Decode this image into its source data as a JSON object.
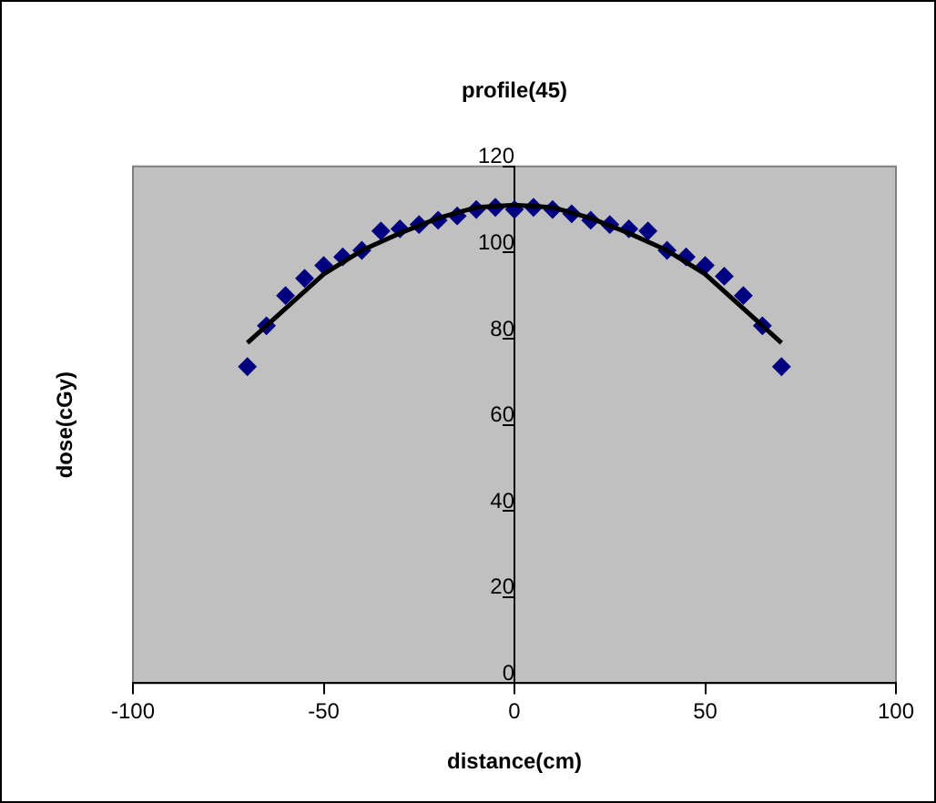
{
  "chart_data": {
    "type": "scatter",
    "title": "profile(45)",
    "xlabel": "distance(cm)",
    "ylabel": "dose(cGy)",
    "x": [
      -70,
      -65,
      -60,
      -55,
      -50,
      -45,
      -40,
      -35,
      -30,
      -25,
      -20,
      -15,
      -10,
      -5,
      0,
      5,
      10,
      15,
      20,
      25,
      30,
      35,
      40,
      45,
      50,
      55,
      60,
      65,
      70
    ],
    "series": [
      {
        "color": "#000080",
        "marker": "diamond",
        "values": [
          73.5,
          83,
          90,
          94,
          97,
          99,
          100.5,
          105,
          105.5,
          106.5,
          107.5,
          108.5,
          110,
          110.5,
          110,
          110.5,
          110,
          109,
          107.5,
          106.5,
          105.5,
          105,
          100.5,
          99,
          97,
          94.5,
          90,
          83,
          73.5
        ]
      },
      {
        "type": "line",
        "color": "#000000",
        "marker": "none",
        "x": [
          -70,
          -60,
          -50,
          -40,
          -30,
          -20,
          -10,
          0,
          10,
          20,
          30,
          40,
          50,
          60,
          70
        ],
        "values": [
          79,
          87,
          95,
          100.5,
          104.5,
          108,
          110.5,
          111,
          110.5,
          108,
          104.5,
          100.5,
          95,
          87,
          79
        ]
      }
    ],
    "xlim": [
      -100,
      100
    ],
    "xticks": [
      -100,
      -50,
      0,
      50,
      100
    ],
    "ylim": [
      0,
      120
    ],
    "yticks": [
      0,
      20,
      40,
      60,
      80,
      100,
      120
    ],
    "grid": false,
    "legend": false
  }
}
